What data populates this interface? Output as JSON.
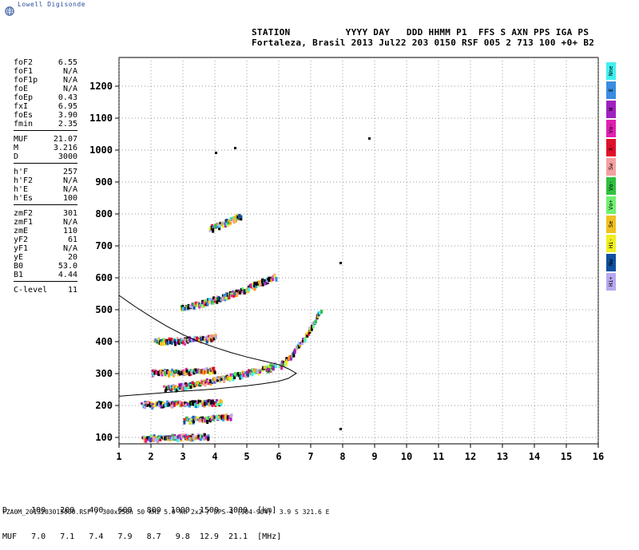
{
  "brand": "Lowell Digisonde",
  "header": {
    "line1": "STATION          YYYY DAY   DDD HHMM P1  FFS S AXN PPS IGA PS",
    "line2": "Fortaleza, Brasil 2013 Jul22 203 0150 RSF 005 2 713 100 +0+ B2"
  },
  "params": [
    {
      "label": "foF2",
      "value": "6.55"
    },
    {
      "label": "foF1",
      "value": "N/A"
    },
    {
      "label": "foF1p",
      "value": "N/A"
    },
    {
      "label": "foE",
      "value": "N/A"
    },
    {
      "label": "foEp",
      "value": "0.43"
    },
    {
      "label": "fxI",
      "value": "6.95"
    },
    {
      "label": "foEs",
      "value": "3.90"
    },
    {
      "label": "fmin",
      "value": "2.35"
    },
    {
      "sep": true
    },
    {
      "label": "MUF",
      "value": "21.07"
    },
    {
      "label": "M",
      "value": "3.216"
    },
    {
      "label": "D",
      "value": "3000"
    },
    {
      "sep": true
    },
    {
      "label": "h'F",
      "value": "257"
    },
    {
      "label": "h'F2",
      "value": "N/A"
    },
    {
      "label": "h'E",
      "value": "N/A"
    },
    {
      "label": "h'Es",
      "value": "100"
    },
    {
      "sep": true
    },
    {
      "label": "zmF2",
      "value": "301"
    },
    {
      "label": "zmF1",
      "value": "N/A"
    },
    {
      "label": "zmE",
      "value": "110"
    },
    {
      "label": "yF2",
      "value": "61"
    },
    {
      "label": "yF1",
      "value": "N/A"
    },
    {
      "label": "yE",
      "value": "20"
    },
    {
      "label": "B0",
      "value": "53.0"
    },
    {
      "label": "B1",
      "value": "4.44"
    },
    {
      "sep": true
    },
    {
      "label": "C-level",
      "value": "11"
    }
  ],
  "muf_table": {
    "d_row": "D     100   200   400   600   800  1000  1500  3000  [km]",
    "muf_row": "MUF   7.0   7.1   7.4   7.9   8.7   9.8  12.9  21.1  [MHz]"
  },
  "footer": "FZA0M_2013203015000.RSF / 300x256h 50 kHz 5.0 km 2x2 / DPS-4 (904-904)  3.9 S 321.6 E",
  "legend": [
    {
      "label": "Nne",
      "color": "#40f0f0"
    },
    {
      "label": "E",
      "color": "#3a8de0"
    },
    {
      "label": "W",
      "color": "#a020c0"
    },
    {
      "label": "Vo-",
      "color": "#e020b0"
    },
    {
      "label": "X-",
      "color": "#e0102a"
    },
    {
      "label": "Sw",
      "color": "#f4a0a0"
    },
    {
      "label": "Vo-",
      "color": "#30c040"
    },
    {
      "label": "Vo+",
      "color": "#70f070"
    },
    {
      "label": "Se",
      "color": "#f0c020"
    },
    {
      "label": "Hi-",
      "color": "#f0f020"
    },
    {
      "label": "Nw",
      "color": "#1050a0"
    },
    {
      "label": "Hi+",
      "color": "#b8a8f0"
    }
  ],
  "chart_data": {
    "type": "scatter",
    "title": "",
    "xlabel": "",
    "ylabel": "",
    "xlim": [
      1,
      16
    ],
    "ylim": [
      80,
      1290
    ],
    "x_ticks": [
      1,
      2,
      3,
      4,
      5,
      6,
      7,
      8,
      9,
      10,
      11,
      12,
      13,
      14,
      15,
      16
    ],
    "y_ticks": [
      100,
      200,
      300,
      400,
      500,
      600,
      700,
      800,
      900,
      1000,
      1100,
      1200
    ],
    "grid": true,
    "echo_traces": [
      {
        "x_start": 1.7,
        "x_end": 3.8,
        "h_start": 103,
        "h_end": 108
      },
      {
        "x_start": 1.7,
        "x_end": 4.2,
        "h_start": 208,
        "h_end": 214
      },
      {
        "x_start": 2.4,
        "x_end": 5.9,
        "h_start": 258,
        "h_end": 330
      },
      {
        "x_start": 2.0,
        "x_end": 4.0,
        "h_start": 308,
        "h_end": 315
      },
      {
        "x_start": 2.1,
        "x_end": 4.0,
        "h_start": 405,
        "h_end": 418
      },
      {
        "x_start": 2.9,
        "x_end": 5.9,
        "h_start": 510,
        "h_end": 610
      },
      {
        "x_start": 3.8,
        "x_end": 4.8,
        "h_start": 760,
        "h_end": 800
      },
      {
        "x_start": 6.0,
        "x_end": 7.3,
        "h_start": 330,
        "h_end": 500
      },
      {
        "x_start": 3.0,
        "x_end": 4.5,
        "h_start": 160,
        "h_end": 170
      }
    ],
    "isolated_points": [
      {
        "x": 8.8,
        "h": 1040
      },
      {
        "x": 7.9,
        "h": 650
      },
      {
        "x": 7.9,
        "h": 130
      },
      {
        "x": 4.0,
        "h": 995
      },
      {
        "x": 4.6,
        "h": 1010
      }
    ],
    "profile_curve": [
      {
        "x": 1.0,
        "h": 545
      },
      {
        "x": 1.5,
        "h": 510
      },
      {
        "x": 2.0,
        "h": 478
      },
      {
        "x": 2.5,
        "h": 448
      },
      {
        "x": 3.0,
        "h": 422
      },
      {
        "x": 3.5,
        "h": 400
      },
      {
        "x": 4.0,
        "h": 382
      },
      {
        "x": 4.5,
        "h": 366
      },
      {
        "x": 5.0,
        "h": 352
      },
      {
        "x": 5.5,
        "h": 340
      },
      {
        "x": 6.0,
        "h": 328
      },
      {
        "x": 6.3,
        "h": 315
      },
      {
        "x": 6.55,
        "h": 301
      },
      {
        "x": 6.3,
        "h": 285
      },
      {
        "x": 6.0,
        "h": 276
      },
      {
        "x": 5.5,
        "h": 268
      },
      {
        "x": 5.0,
        "h": 262
      },
      {
        "x": 4.5,
        "h": 257
      },
      {
        "x": 4.0,
        "h": 252
      },
      {
        "x": 3.5,
        "h": 248
      },
      {
        "x": 3.0,
        "h": 245
      },
      {
        "x": 2.5,
        "h": 241
      },
      {
        "x": 2.0,
        "h": 237
      },
      {
        "x": 1.5,
        "h": 233
      },
      {
        "x": 1.0,
        "h": 229
      }
    ]
  }
}
